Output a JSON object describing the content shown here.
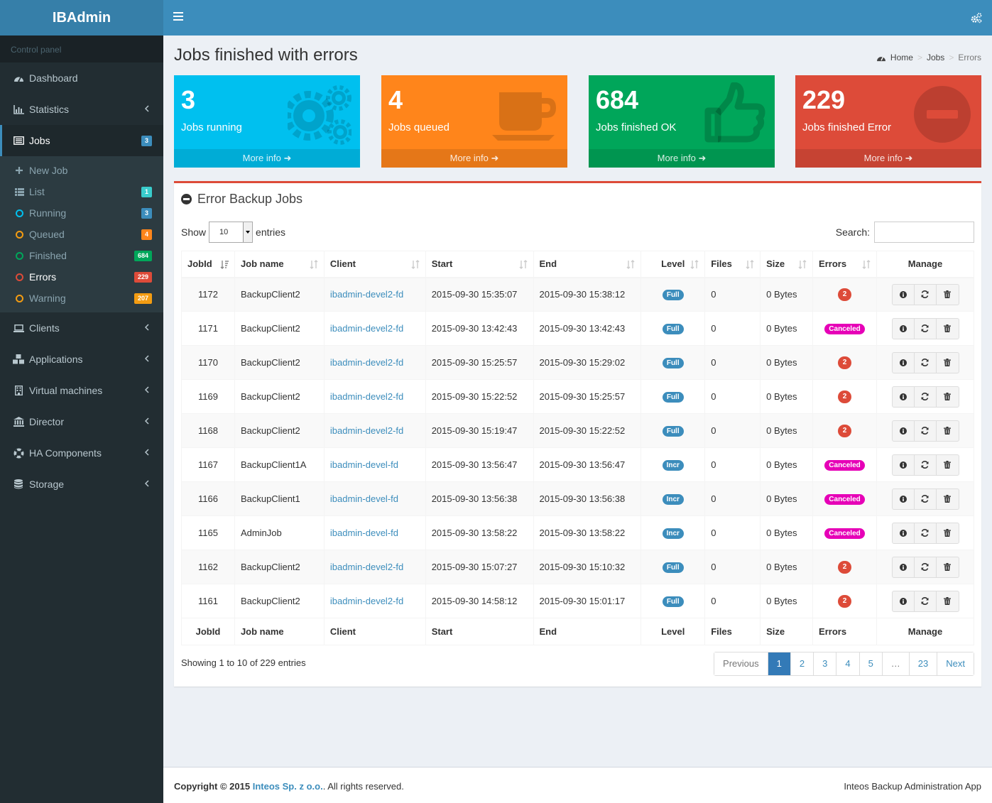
{
  "app": {
    "logo": "IBAdmin"
  },
  "sidebar": {
    "header": "Control panel",
    "items": [
      {
        "label": "Dashboard"
      },
      {
        "label": "Statistics"
      },
      {
        "label": "Jobs",
        "badge": "3"
      },
      {
        "label": "Clients"
      },
      {
        "label": "Applications"
      },
      {
        "label": "Virtual machines"
      },
      {
        "label": "Director"
      },
      {
        "label": "HA Components"
      },
      {
        "label": "Storage"
      }
    ],
    "jobs_sub": [
      {
        "label": "New Job"
      },
      {
        "label": "List",
        "badge": "1"
      },
      {
        "label": "Running",
        "badge": "3"
      },
      {
        "label": "Queued",
        "badge": "4"
      },
      {
        "label": "Finished",
        "badge": "684"
      },
      {
        "label": "Errors",
        "badge": "229"
      },
      {
        "label": "Warning",
        "badge": "207"
      }
    ]
  },
  "page": {
    "title": "Jobs finished with errors",
    "breadcrumb": [
      "Home",
      "Jobs",
      "Errors"
    ]
  },
  "boxes": [
    {
      "value": "3",
      "label": "Jobs running",
      "more": "More info",
      "color": "#00c0ef"
    },
    {
      "value": "4",
      "label": "Jobs queued",
      "more": "More info",
      "color": "#ff851b"
    },
    {
      "value": "684",
      "label": "Jobs finished OK",
      "more": "More info",
      "color": "#00a65a"
    },
    {
      "value": "229",
      "label": "Jobs finished Error",
      "more": "More info",
      "color": "#dd4b39"
    }
  ],
  "panel": {
    "title": "Error Backup Jobs",
    "show_label": "Show",
    "entries_value": "10",
    "entries_label": "entries",
    "search_label": "Search:",
    "columns": [
      "JobId",
      "Job name",
      "Client",
      "Start",
      "End",
      "Level",
      "Files",
      "Size",
      "Errors",
      "Manage"
    ],
    "rows": [
      {
        "id": "1172",
        "name": "BackupClient2",
        "client": "ibadmin-devel2-fd",
        "start": "2015-09-30 15:35:07",
        "end": "2015-09-30 15:38:12",
        "level": "Full",
        "files": "0",
        "size": "0 Bytes",
        "errors": "2"
      },
      {
        "id": "1171",
        "name": "BackupClient2",
        "client": "ibadmin-devel2-fd",
        "start": "2015-09-30 13:42:43",
        "end": "2015-09-30 13:42:43",
        "level": "Full",
        "files": "0",
        "size": "0 Bytes",
        "errors": "Canceled"
      },
      {
        "id": "1170",
        "name": "BackupClient2",
        "client": "ibadmin-devel2-fd",
        "start": "2015-09-30 15:25:57",
        "end": "2015-09-30 15:29:02",
        "level": "Full",
        "files": "0",
        "size": "0 Bytes",
        "errors": "2"
      },
      {
        "id": "1169",
        "name": "BackupClient2",
        "client": "ibadmin-devel2-fd",
        "start": "2015-09-30 15:22:52",
        "end": "2015-09-30 15:25:57",
        "level": "Full",
        "files": "0",
        "size": "0 Bytes",
        "errors": "2"
      },
      {
        "id": "1168",
        "name": "BackupClient2",
        "client": "ibadmin-devel2-fd",
        "start": "2015-09-30 15:19:47",
        "end": "2015-09-30 15:22:52",
        "level": "Full",
        "files": "0",
        "size": "0 Bytes",
        "errors": "2"
      },
      {
        "id": "1167",
        "name": "BackupClient1A",
        "client": "ibadmin-devel-fd",
        "start": "2015-09-30 13:56:47",
        "end": "2015-09-30 13:56:47",
        "level": "Incr",
        "files": "0",
        "size": "0 Bytes",
        "errors": "Canceled"
      },
      {
        "id": "1166",
        "name": "BackupClient1",
        "client": "ibadmin-devel-fd",
        "start": "2015-09-30 13:56:38",
        "end": "2015-09-30 13:56:38",
        "level": "Incr",
        "files": "0",
        "size": "0 Bytes",
        "errors": "Canceled"
      },
      {
        "id": "1165",
        "name": "AdminJob",
        "client": "ibadmin-devel-fd",
        "start": "2015-09-30 13:58:22",
        "end": "2015-09-30 13:58:22",
        "level": "Incr",
        "files": "0",
        "size": "0 Bytes",
        "errors": "Canceled"
      },
      {
        "id": "1162",
        "name": "BackupClient2",
        "client": "ibadmin-devel2-fd",
        "start": "2015-09-30 15:07:27",
        "end": "2015-09-30 15:10:32",
        "level": "Full",
        "files": "0",
        "size": "0 Bytes",
        "errors": "2"
      },
      {
        "id": "1161",
        "name": "BackupClient2",
        "client": "ibadmin-devel2-fd",
        "start": "2015-09-30 14:58:12",
        "end": "2015-09-30 15:01:17",
        "level": "Full",
        "files": "0",
        "size": "0 Bytes",
        "errors": "2"
      }
    ],
    "info": "Showing 1 to 10 of 229 entries",
    "pagination": [
      "Previous",
      "1",
      "2",
      "3",
      "4",
      "5",
      "…",
      "23",
      "Next"
    ],
    "active_page": "1"
  },
  "footer": {
    "copyright": "Copyright © 2015",
    "company": "Inteos Sp. z o.o.",
    "rights": ". All rights reserved.",
    "app_name": "Inteos Backup Administration App"
  },
  "icons": {
    "menu": [
      "dashboard-icon",
      "bar-chart-icon",
      "list-alt-icon",
      "laptop-icon",
      "cubes-icon",
      "building-icon",
      "bank-icon",
      "life-ring-icon",
      "database-icon"
    ]
  },
  "colors": {
    "primary": "#3c8dbc",
    "sidebar": "#222d32",
    "danger": "#dd4b39",
    "canceled": "#e600b7"
  }
}
